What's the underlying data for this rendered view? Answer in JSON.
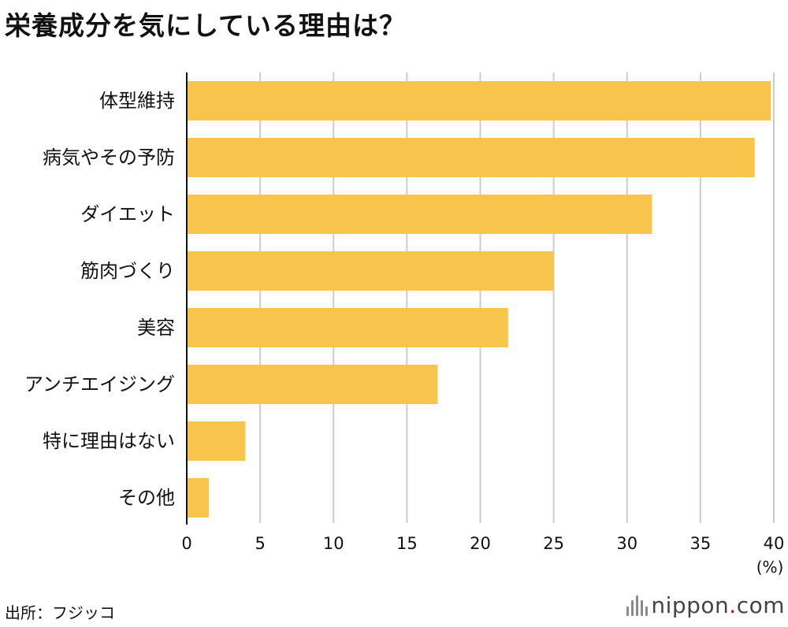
{
  "title": "栄養成分を気にしている理由は？",
  "chart_data": {
    "type": "bar",
    "orientation": "horizontal",
    "categories": [
      "体型維持",
      "病気やその予防",
      "ダイエット",
      "筋肉づくり",
      "美容",
      "アンチエイジング",
      "特に理由はない",
      "その他"
    ],
    "values": [
      39.8,
      38.7,
      31.7,
      25.0,
      21.9,
      17.1,
      4.0,
      1.5
    ],
    "xlim": [
      0,
      40
    ],
    "xticks": [
      "0",
      "5",
      "10",
      "15",
      "20",
      "25",
      "30",
      "35",
      "40"
    ],
    "unit_label": "(%)",
    "grid": true,
    "bar_color": "#f8c54c",
    "grid_color": "#cccccc",
    "axis_color": "#111111"
  },
  "source": "出所：フジッコ",
  "logo": {
    "prefix": "nippon",
    "dot": ".",
    "suffix": "com",
    "dot_color": "#d0021b"
  }
}
